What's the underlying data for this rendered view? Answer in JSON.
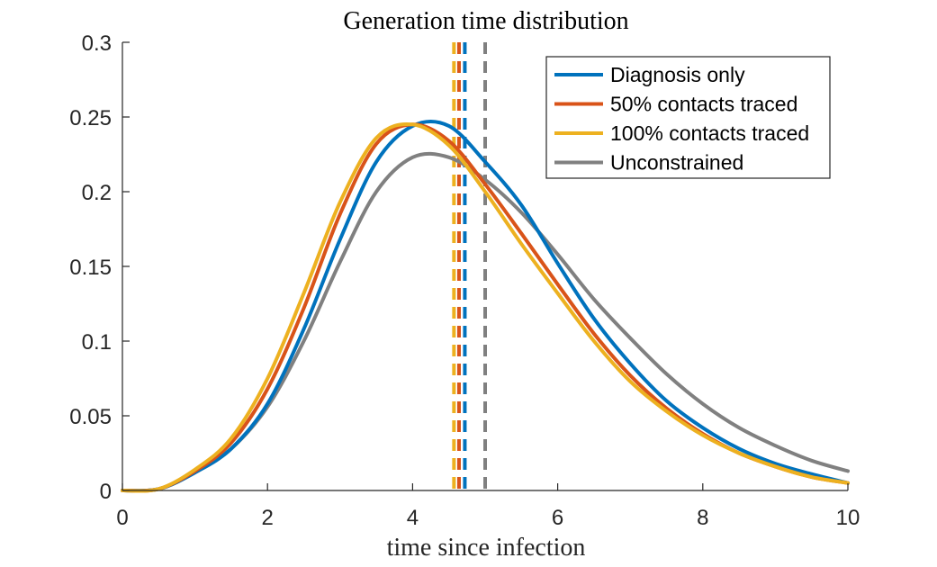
{
  "chart_data": {
    "type": "line",
    "title": "Generation time distribution",
    "xlabel": "time since infection",
    "ylabel": "",
    "xlim": [
      0,
      10
    ],
    "ylim": [
      0,
      0.3
    ],
    "xticks": [
      0,
      2,
      4,
      6,
      8,
      10
    ],
    "xtick_labels": [
      "0",
      "2",
      "4",
      "6",
      "8",
      "10"
    ],
    "yticks": [
      0,
      0.05,
      0.1,
      0.15,
      0.2,
      0.25,
      0.3
    ],
    "ytick_labels": [
      "0",
      "0.05",
      "0.1",
      "0.15",
      "0.2",
      "0.25",
      "0.3"
    ],
    "grid": false,
    "legend_position": "top-right",
    "x": [
      0,
      0.5,
      1,
      1.5,
      2,
      2.5,
      3,
      3.5,
      4,
      4.5,
      5,
      5.5,
      6,
      6.5,
      7,
      7.5,
      8,
      8.5,
      9,
      9.5,
      10
    ],
    "series": [
      {
        "name": "Diagnosis only",
        "color": "#0072BD",
        "values": [
          0,
          0.001,
          0.012,
          0.028,
          0.058,
          0.108,
          0.168,
          0.22,
          0.244,
          0.244,
          0.22,
          0.191,
          0.152,
          0.115,
          0.085,
          0.06,
          0.042,
          0.028,
          0.018,
          0.011,
          0.005
        ],
        "mean": 4.72
      },
      {
        "name": "50% contacts traced",
        "color": "#D95319",
        "values": [
          0,
          0.001,
          0.013,
          0.032,
          0.068,
          0.122,
          0.185,
          0.232,
          0.245,
          0.234,
          0.205,
          0.172,
          0.138,
          0.105,
          0.077,
          0.055,
          0.038,
          0.025,
          0.016,
          0.009,
          0.005
        ],
        "mean": 4.64
      },
      {
        "name": "100% contacts traced",
        "color": "#EDB120",
        "values": [
          0,
          0.001,
          0.014,
          0.035,
          0.075,
          0.132,
          0.193,
          0.236,
          0.245,
          0.231,
          0.2,
          0.165,
          0.132,
          0.1,
          0.073,
          0.053,
          0.037,
          0.025,
          0.016,
          0.009,
          0.005
        ],
        "mean": 4.57
      },
      {
        "name": "Unconstrained",
        "color": "#808080",
        "values": [
          0,
          0.001,
          0.012,
          0.028,
          0.056,
          0.1,
          0.153,
          0.2,
          0.223,
          0.223,
          0.208,
          0.186,
          0.158,
          0.128,
          0.102,
          0.078,
          0.058,
          0.042,
          0.03,
          0.02,
          0.013
        ],
        "mean": 5.0
      }
    ]
  }
}
